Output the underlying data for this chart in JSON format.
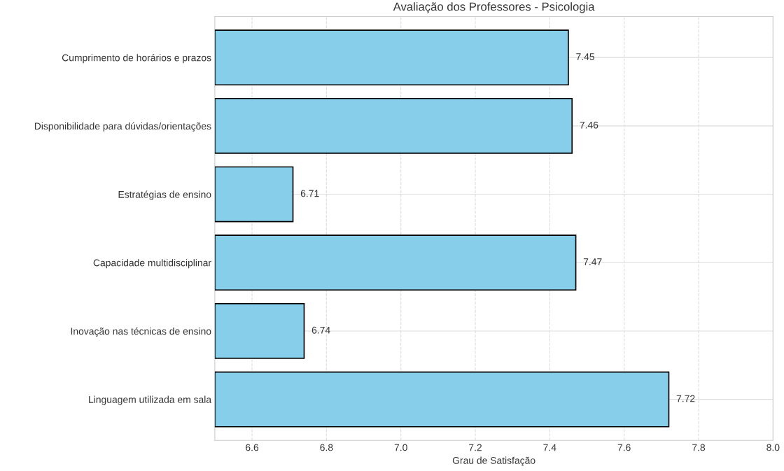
{
  "chart_data": {
    "type": "bar",
    "orientation": "horizontal",
    "title": "Avaliação dos Professores - Psicologia",
    "xlabel": "Grau de Satisfação",
    "categories": [
      "Cumprimento de horários e prazos",
      "Disponibilidade para dúvidas/orientações",
      "Estratégias de ensino",
      "Capacidade multidisciplinar",
      "Inovação nas técnicas de ensino",
      "Linguagem utilizada em sala"
    ],
    "values": [
      7.45,
      7.46,
      6.71,
      7.47,
      6.74,
      7.72
    ],
    "color": "#87ceeb",
    "xlim": [
      6.5,
      8.0
    ],
    "xticks": [
      6.6,
      6.8,
      {
        "value": 7,
        "label": "7.0"
      },
      7.2,
      7.4,
      7.6,
      7.8,
      {
        "value": 8,
        "label": "8.0"
      }
    ],
    "grid": true,
    "data_labels": true
  }
}
